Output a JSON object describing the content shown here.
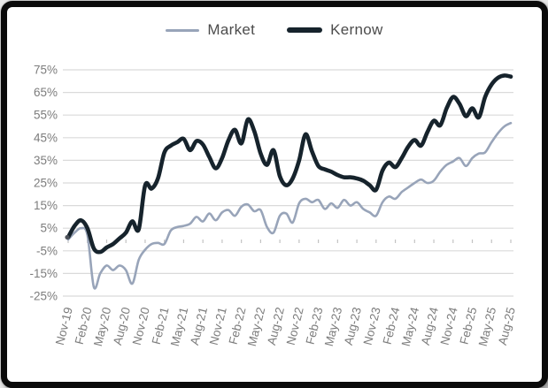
{
  "page": {
    "background": "#e9e9e9"
  },
  "frame": {
    "border_color": "#0a0a0a",
    "background": "#ffffff"
  },
  "legend": {
    "items": [
      {
        "label": "Market",
        "color": "#98a4b9",
        "swatch_thickness": 3
      },
      {
        "label": "Kernow",
        "color": "#16232c",
        "swatch_thickness": 6
      }
    ]
  },
  "chart_data": {
    "type": "line",
    "x": [
      "Nov-19",
      "Dec-19",
      "Jan-20",
      "Feb-20",
      "Mar-20",
      "Apr-20",
      "May-20",
      "Jun-20",
      "Jul-20",
      "Aug-20",
      "Sep-20",
      "Oct-20",
      "Nov-20",
      "Dec-20",
      "Jan-21",
      "Feb-21",
      "Mar-21",
      "Apr-21",
      "May-21",
      "Jun-21",
      "Jul-21",
      "Aug-21",
      "Sep-21",
      "Oct-21",
      "Nov-21",
      "Dec-21",
      "Jan-22",
      "Feb-22",
      "Mar-22",
      "Apr-22",
      "May-22",
      "Jun-22",
      "Jul-22",
      "Aug-22",
      "Sep-22",
      "Oct-22",
      "Nov-22",
      "Dec-22",
      "Jan-23",
      "Feb-23",
      "Mar-23",
      "Apr-23",
      "May-23",
      "Jun-23",
      "Jul-23",
      "Aug-23",
      "Sep-23",
      "Oct-23",
      "Nov-23",
      "Dec-23",
      "Jan-24",
      "Feb-24",
      "Mar-24",
      "Apr-24",
      "May-24",
      "Jun-24",
      "Jul-24",
      "Aug-24",
      "Sep-24",
      "Oct-24",
      "Nov-24",
      "Dec-24",
      "Jan-25",
      "Feb-25",
      "Mar-25",
      "Apr-25",
      "May-25",
      "Jun-25",
      "Jul-25",
      "Aug-25"
    ],
    "x_tick_labels": [
      "Nov-19",
      "Feb-20",
      "May-20",
      "Aug-20",
      "Nov-20",
      "Feb-21",
      "May-21",
      "Aug-21",
      "Nov-21",
      "Feb-22",
      "May-22",
      "Aug-22",
      "Nov-22",
      "Feb-23",
      "May-23",
      "Aug-23",
      "Nov-23",
      "Feb-24",
      "May-24",
      "Aug-24",
      "Nov-24",
      "Feb-25",
      "May-25",
      "Aug-25"
    ],
    "x_tick_every": 3,
    "series": [
      {
        "name": "Market",
        "color": "#98a4b9",
        "width": 2.6,
        "values": [
          0,
          3,
          5,
          2,
          -21,
          -15,
          -11.5,
          -13.5,
          -11.5,
          -13.5,
          -19.5,
          -9,
          -4.5,
          -2,
          -1.5,
          -2,
          4,
          5.5,
          6,
          7,
          10,
          8,
          11.5,
          8.5,
          12,
          13,
          10.5,
          14.5,
          15.5,
          12.5,
          13,
          5.5,
          3,
          10.5,
          11.5,
          7.5,
          16,
          18,
          16.5,
          17.5,
          13.5,
          16,
          14,
          17.5,
          15,
          16.5,
          13.5,
          12,
          10.5,
          16.5,
          19,
          18,
          21,
          23,
          25,
          26.5,
          25,
          26,
          30,
          33,
          34.5,
          36,
          32.5,
          36,
          38,
          38.5,
          43,
          47,
          50,
          51.5
        ]
      },
      {
        "name": "Kernow",
        "color": "#16232c",
        "width": 4.6,
        "values": [
          1,
          6,
          8.5,
          5,
          -4,
          -5.5,
          -3.5,
          -2,
          0.5,
          3,
          8,
          4.5,
          24,
          22.5,
          27,
          38.5,
          41.5,
          43,
          44.5,
          39.5,
          43.5,
          42,
          36.5,
          31.5,
          36,
          44,
          48.5,
          42.5,
          53,
          48,
          38,
          33,
          39.5,
          28,
          24,
          27,
          35,
          46.5,
          39,
          32.5,
          31,
          30,
          28.5,
          27.5,
          27.5,
          27,
          26,
          24,
          22,
          30.5,
          34,
          32,
          36,
          41,
          44,
          41.5,
          47.5,
          52.5,
          50.5,
          58,
          63,
          60,
          54.5,
          58,
          54,
          63,
          68.5,
          71.5,
          72.5,
          72
        ]
      }
    ],
    "ylim": [
      -25,
      75
    ],
    "y_tick_values": [
      75,
      65,
      55,
      45,
      35,
      25,
      15,
      5,
      -5,
      -15,
      -25
    ],
    "y_tick_labels": [
      "75%",
      "65%",
      "55%",
      "45%",
      "35%",
      "25%",
      "15%",
      "5%",
      "-5%",
      "-15%",
      "-25%"
    ],
    "grid": "horizontal",
    "grid_color": "#dadada",
    "axis_color": "#c3c3c3",
    "tick_label_color": "#7c7c7c",
    "legend_position": "top-center",
    "start_marker": {
      "value": 1,
      "color": "#4d525a"
    }
  }
}
